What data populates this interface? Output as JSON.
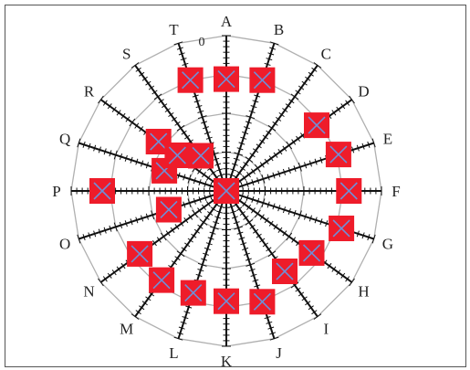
{
  "chart_data": {
    "type": "scatter",
    "subtype": "radar",
    "title": "",
    "axes": [
      "A",
      "B",
      "C",
      "D",
      "E",
      "F",
      "G",
      "H",
      "I",
      "J",
      "K",
      "L",
      "M",
      "N",
      "O",
      "P",
      "Q",
      "R",
      "S",
      "T"
    ],
    "radial_tick_label": "0",
    "rings": 4,
    "grid": true,
    "legend": "none",
    "marker_color": "#ee1c2a",
    "marker_cross_color": "#6f8fd8",
    "series": [
      {
        "values": [
          0.72,
          0.75,
          0,
          0.72,
          0.76,
          0.79,
          0.78,
          0.68,
          0.64,
          0.75,
          0.71,
          0.69,
          0.71,
          0.69,
          0.39,
          0.8,
          0.42,
          0.54,
          0.28,
          0.75
        ],
        "extra_points": [
          {
            "axis": "A",
            "value": 0
          },
          {
            "axis": "R",
            "value": 0.39
          }
        ]
      }
    ]
  }
}
